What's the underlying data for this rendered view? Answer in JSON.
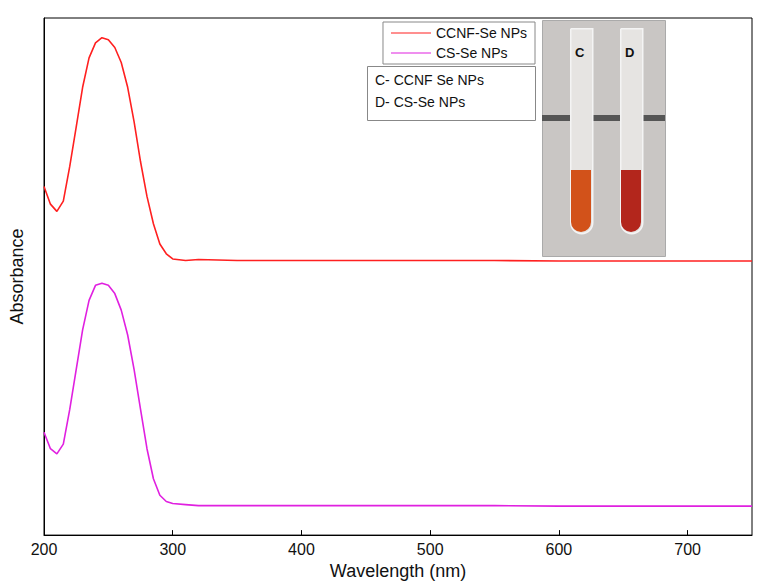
{
  "chart_data": {
    "type": "line",
    "x_label": "Wavelength (nm)",
    "y_label": "Absorbance",
    "x": [
      200,
      205,
      210,
      215,
      220,
      225,
      230,
      235,
      240,
      245,
      250,
      255,
      260,
      265,
      270,
      275,
      280,
      285,
      290,
      295,
      300,
      310,
      320,
      350,
      400,
      450,
      500,
      550,
      600,
      650,
      700,
      750
    ],
    "series": [
      {
        "name": "CCNF-Se NPs",
        "color": "#ff2020",
        "values": [
          0.674,
          0.64,
          0.626,
          0.646,
          0.713,
          0.789,
          0.866,
          0.923,
          0.952,
          0.962,
          0.958,
          0.943,
          0.914,
          0.866,
          0.799,
          0.722,
          0.655,
          0.602,
          0.563,
          0.544,
          0.534,
          0.531,
          0.533,
          0.531,
          0.531,
          0.531,
          0.531,
          0.531,
          0.53,
          0.53,
          0.53,
          0.53
        ]
      },
      {
        "name": "CS-Se NPs",
        "color": "#e020e0",
        "values": [
          0.199,
          0.167,
          0.157,
          0.176,
          0.243,
          0.32,
          0.397,
          0.454,
          0.483,
          0.487,
          0.483,
          0.467,
          0.435,
          0.387,
          0.32,
          0.243,
          0.167,
          0.109,
          0.077,
          0.065,
          0.061,
          0.059,
          0.057,
          0.057,
          0.057,
          0.057,
          0.057,
          0.057,
          0.056,
          0.056,
          0.056,
          0.056
        ]
      }
    ],
    "xlim": [
      200,
      750
    ],
    "xticks": [
      200,
      300,
      400,
      500,
      600,
      700
    ],
    "ylim": [
      0,
      1
    ],
    "tick_labels": "x",
    "grid": false,
    "legend": "upper right",
    "annotations": [
      "C- CCNF Se NPs",
      "D- CS-Se NPs"
    ],
    "inset_labels": [
      "C",
      "D"
    ]
  }
}
